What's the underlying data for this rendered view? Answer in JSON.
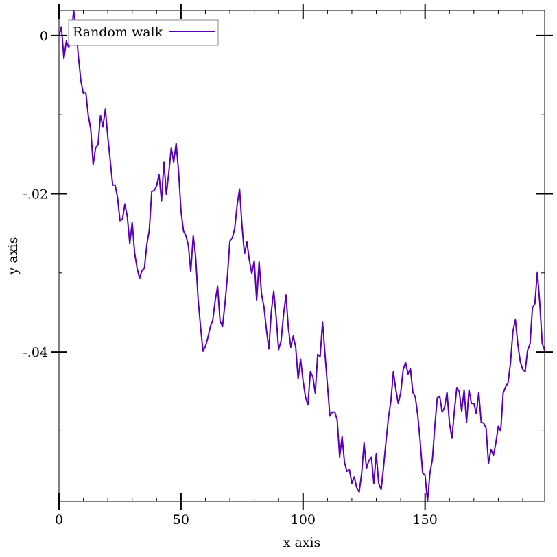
{
  "chart_data": {
    "type": "line",
    "title": "",
    "xlabel": "x axis",
    "ylabel": "y axis",
    "xlim": [
      0,
      199
    ],
    "ylim": [
      -0.0589,
      0.0032
    ],
    "x_ticks": [
      0,
      50,
      100,
      150
    ],
    "x_tick_labels": [
      "0",
      "50",
      "100",
      "150"
    ],
    "x_minor_ticks": [
      0,
      10,
      20,
      30,
      40,
      50,
      60,
      70,
      80,
      90,
      100,
      110,
      120,
      130,
      140,
      150,
      160,
      170,
      180,
      190
    ],
    "y_ticks": [
      0,
      -0.02,
      -0.04
    ],
    "y_tick_labels": [
      "0",
      "-.02",
      "-.04"
    ],
    "y_minor_ticks": [
      0,
      -0.01,
      -0.02,
      -0.03,
      -0.04,
      -0.05
    ],
    "grid": false,
    "legend": {
      "position": "top-left"
    },
    "series": [
      {
        "name": "Random walk",
        "color": "#5a00b4",
        "x_start": 0,
        "x_step": 1,
        "values": [
          0,
          0.0011,
          -0.0029,
          -0.0007,
          -0.0015,
          -0.0003,
          0.0032,
          0.0007,
          -0.0028,
          -0.0058,
          -0.0073,
          -0.0072,
          -0.0101,
          -0.0118,
          -0.0163,
          -0.0142,
          -0.0138,
          -0.0101,
          -0.0115,
          -0.0093,
          -0.0128,
          -0.0158,
          -0.0189,
          -0.0189,
          -0.0205,
          -0.0234,
          -0.0232,
          -0.0213,
          -0.0229,
          -0.0263,
          -0.0236,
          -0.0275,
          -0.0294,
          -0.0307,
          -0.0297,
          -0.0294,
          -0.0264,
          -0.0246,
          -0.0197,
          -0.0196,
          -0.019,
          -0.0176,
          -0.0209,
          -0.016,
          -0.0201,
          -0.0173,
          -0.0142,
          -0.016,
          -0.0136,
          -0.0172,
          -0.0222,
          -0.0247,
          -0.0253,
          -0.0265,
          -0.0298,
          -0.0253,
          -0.028,
          -0.0333,
          -0.0368,
          -0.0399,
          -0.0393,
          -0.0382,
          -0.0368,
          -0.036,
          -0.0335,
          -0.0317,
          -0.0361,
          -0.0368,
          -0.0339,
          -0.0305,
          -0.026,
          -0.0256,
          -0.0244,
          -0.0214,
          -0.0194,
          -0.0241,
          -0.0276,
          -0.0261,
          -0.0284,
          -0.0301,
          -0.0285,
          -0.0335,
          -0.0286,
          -0.0327,
          -0.0343,
          -0.0372,
          -0.0396,
          -0.0349,
          -0.0323,
          -0.0356,
          -0.0397,
          -0.0386,
          -0.0353,
          -0.0328,
          -0.037,
          -0.0394,
          -0.038,
          -0.0394,
          -0.0434,
          -0.0409,
          -0.0436,
          -0.0457,
          -0.0467,
          -0.0425,
          -0.0431,
          -0.0452,
          -0.0403,
          -0.0406,
          -0.0362,
          -0.0403,
          -0.0442,
          -0.0481,
          -0.0476,
          -0.0476,
          -0.0486,
          -0.0533,
          -0.0507,
          -0.054,
          -0.0551,
          -0.0549,
          -0.0566,
          -0.0558,
          -0.0572,
          -0.0577,
          -0.0554,
          -0.0515,
          -0.0547,
          -0.0537,
          -0.0533,
          -0.0566,
          -0.0529,
          -0.0566,
          -0.0574,
          -0.0545,
          -0.0513,
          -0.0483,
          -0.0462,
          -0.0425,
          -0.0447,
          -0.0465,
          -0.0452,
          -0.0423,
          -0.0413,
          -0.0428,
          -0.0421,
          -0.0451,
          -0.0457,
          -0.048,
          -0.0513,
          -0.0553,
          -0.0556,
          -0.0589,
          -0.0553,
          -0.0536,
          -0.0494,
          -0.0458,
          -0.0456,
          -0.0476,
          -0.047,
          -0.0451,
          -0.049,
          -0.0509,
          -0.0475,
          -0.0445,
          -0.045,
          -0.0475,
          -0.0448,
          -0.0489,
          -0.0448,
          -0.0465,
          -0.0465,
          -0.0478,
          -0.0451,
          -0.0489,
          -0.049,
          -0.0496,
          -0.0541,
          -0.0523,
          -0.0531,
          -0.0515,
          -0.0494,
          -0.05,
          -0.0452,
          -0.0444,
          -0.0439,
          -0.0414,
          -0.0374,
          -0.0359,
          -0.039,
          -0.0412,
          -0.0422,
          -0.0425,
          -0.0398,
          -0.039,
          -0.0344,
          -0.0339,
          -0.0299,
          -0.0338,
          -0.0389,
          -0.0398
        ]
      }
    ]
  }
}
